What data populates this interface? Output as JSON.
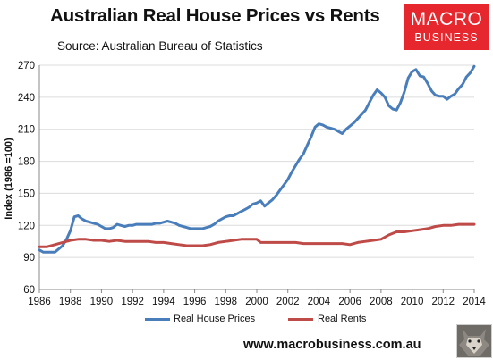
{
  "title": "Australian Real House Prices vs Rents",
  "subtitle": "Source: Australian Bureau of Statistics",
  "logo": {
    "line1": "MACRO",
    "line2": "BUSINESS"
  },
  "footer_url": "www.macrobusiness.com.au",
  "colors": {
    "house_prices": "#4a7ebb",
    "rents": "#be4b48",
    "grid": "#dcdcdc",
    "logo_bg": "#e6272d"
  },
  "chart_data": {
    "type": "line",
    "ylabel": "Index (1986 =100)",
    "xlabel": "",
    "xlim": [
      1986,
      2014
    ],
    "ylim": [
      60,
      270
    ],
    "xticks": [
      1986,
      1988,
      1990,
      1992,
      1994,
      1996,
      1998,
      2000,
      2002,
      2004,
      2006,
      2008,
      2010,
      2012,
      2014
    ],
    "yticks": [
      60,
      90,
      120,
      150,
      180,
      210,
      240,
      270
    ],
    "grid": "horizontal",
    "legend_position": "bottom",
    "series": [
      {
        "name": "Real House Prices",
        "color": "#4a7ebb",
        "points": [
          [
            1986,
            97
          ],
          [
            1986.25,
            95
          ],
          [
            1986.5,
            95
          ],
          [
            1986.75,
            95
          ],
          [
            1987,
            95
          ],
          [
            1987.25,
            98
          ],
          [
            1987.5,
            101
          ],
          [
            1987.75,
            107
          ],
          [
            1988,
            115
          ],
          [
            1988.25,
            128
          ],
          [
            1988.5,
            129
          ],
          [
            1988.75,
            126
          ],
          [
            1989,
            124
          ],
          [
            1989.25,
            123
          ],
          [
            1989.5,
            122
          ],
          [
            1989.75,
            121
          ],
          [
            1990,
            119
          ],
          [
            1990.25,
            117
          ],
          [
            1990.5,
            117
          ],
          [
            1990.75,
            118
          ],
          [
            1991,
            121
          ],
          [
            1991.25,
            120
          ],
          [
            1991.5,
            119
          ],
          [
            1991.75,
            120
          ],
          [
            1992,
            120
          ],
          [
            1992.25,
            121
          ],
          [
            1992.5,
            121
          ],
          [
            1992.75,
            121
          ],
          [
            1993,
            121
          ],
          [
            1993.25,
            121
          ],
          [
            1993.5,
            122
          ],
          [
            1993.75,
            122
          ],
          [
            1994,
            123
          ],
          [
            1994.25,
            124
          ],
          [
            1994.5,
            123
          ],
          [
            1994.75,
            122
          ],
          [
            1995,
            120
          ],
          [
            1995.25,
            119
          ],
          [
            1995.5,
            118
          ],
          [
            1995.75,
            117
          ],
          [
            1996,
            117
          ],
          [
            1996.25,
            117
          ],
          [
            1996.5,
            117
          ],
          [
            1996.75,
            118
          ],
          [
            1997,
            119
          ],
          [
            1997.25,
            121
          ],
          [
            1997.5,
            124
          ],
          [
            1997.75,
            126
          ],
          [
            1998,
            128
          ],
          [
            1998.25,
            129
          ],
          [
            1998.5,
            129
          ],
          [
            1998.75,
            131
          ],
          [
            1999,
            133
          ],
          [
            1999.25,
            135
          ],
          [
            1999.5,
            137
          ],
          [
            1999.75,
            140
          ],
          [
            2000,
            141
          ],
          [
            2000.25,
            143
          ],
          [
            2000.5,
            138
          ],
          [
            2000.75,
            141
          ],
          [
            2001,
            144
          ],
          [
            2001.25,
            148
          ],
          [
            2001.5,
            153
          ],
          [
            2001.75,
            158
          ],
          [
            2002,
            163
          ],
          [
            2002.25,
            170
          ],
          [
            2002.5,
            176
          ],
          [
            2002.75,
            182
          ],
          [
            2003,
            187
          ],
          [
            2003.25,
            195
          ],
          [
            2003.5,
            203
          ],
          [
            2003.75,
            212
          ],
          [
            2004,
            215
          ],
          [
            2004.25,
            214
          ],
          [
            2004.5,
            212
          ],
          [
            2004.75,
            211
          ],
          [
            2005,
            210
          ],
          [
            2005.25,
            208
          ],
          [
            2005.5,
            206
          ],
          [
            2005.75,
            210
          ],
          [
            2006,
            213
          ],
          [
            2006.25,
            216
          ],
          [
            2006.5,
            220
          ],
          [
            2006.75,
            224
          ],
          [
            2007,
            228
          ],
          [
            2007.25,
            235
          ],
          [
            2007.5,
            242
          ],
          [
            2007.75,
            247
          ],
          [
            2008,
            244
          ],
          [
            2008.25,
            240
          ],
          [
            2008.5,
            232
          ],
          [
            2008.75,
            229
          ],
          [
            2009,
            228
          ],
          [
            2009.25,
            235
          ],
          [
            2009.5,
            245
          ],
          [
            2009.75,
            258
          ],
          [
            2010,
            264
          ],
          [
            2010.25,
            266
          ],
          [
            2010.5,
            260
          ],
          [
            2010.75,
            259
          ],
          [
            2011,
            253
          ],
          [
            2011.25,
            246
          ],
          [
            2011.5,
            242
          ],
          [
            2011.75,
            241
          ],
          [
            2012,
            241
          ],
          [
            2012.25,
            238
          ],
          [
            2012.5,
            241
          ],
          [
            2012.75,
            243
          ],
          [
            2013,
            248
          ],
          [
            2013.25,
            252
          ],
          [
            2013.5,
            259
          ],
          [
            2013.75,
            263
          ],
          [
            2014,
            269
          ]
        ]
      },
      {
        "name": "Real Rents",
        "color": "#be4b48",
        "points": [
          [
            1986,
            100
          ],
          [
            1986.5,
            100
          ],
          [
            1987,
            102
          ],
          [
            1987.5,
            104
          ],
          [
            1988,
            106
          ],
          [
            1988.5,
            107
          ],
          [
            1989,
            107
          ],
          [
            1989.5,
            106
          ],
          [
            1990,
            106
          ],
          [
            1990.5,
            105
          ],
          [
            1991,
            106
          ],
          [
            1991.5,
            105
          ],
          [
            1992,
            105
          ],
          [
            1992.5,
            105
          ],
          [
            1993,
            105
          ],
          [
            1993.5,
            104
          ],
          [
            1994,
            104
          ],
          [
            1994.5,
            103
          ],
          [
            1995,
            102
          ],
          [
            1995.5,
            101
          ],
          [
            1996,
            101
          ],
          [
            1996.5,
            101
          ],
          [
            1997,
            102
          ],
          [
            1997.5,
            104
          ],
          [
            1998,
            105
          ],
          [
            1998.5,
            106
          ],
          [
            1999,
            107
          ],
          [
            1999.5,
            107
          ],
          [
            2000,
            107
          ],
          [
            2000.25,
            104
          ],
          [
            2000.5,
            104
          ],
          [
            2001,
            104
          ],
          [
            2001.5,
            104
          ],
          [
            2002,
            104
          ],
          [
            2002.5,
            104
          ],
          [
            2003,
            103
          ],
          [
            2003.5,
            103
          ],
          [
            2004,
            103
          ],
          [
            2004.5,
            103
          ],
          [
            2005,
            103
          ],
          [
            2005.5,
            103
          ],
          [
            2006,
            102
          ],
          [
            2006.5,
            104
          ],
          [
            2007,
            105
          ],
          [
            2007.5,
            106
          ],
          [
            2008,
            107
          ],
          [
            2008.5,
            111
          ],
          [
            2009,
            114
          ],
          [
            2009.5,
            114
          ],
          [
            2010,
            115
          ],
          [
            2010.5,
            116
          ],
          [
            2011,
            117
          ],
          [
            2011.5,
            119
          ],
          [
            2012,
            120
          ],
          [
            2012.5,
            120
          ],
          [
            2013,
            121
          ],
          [
            2013.5,
            121
          ],
          [
            2014,
            121
          ]
        ]
      }
    ]
  }
}
